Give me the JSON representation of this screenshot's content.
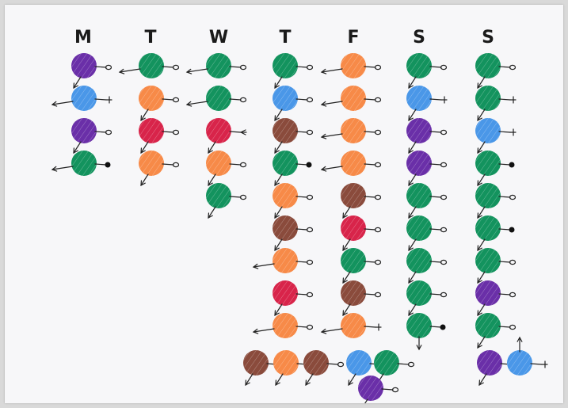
{
  "days": [
    "M",
    "T",
    "W",
    "T",
    "F",
    "S",
    "S"
  ],
  "colors": {
    "purple": "#6a2fa8",
    "blue": "#4a97e8",
    "green": "#13935e",
    "orange": "#f78a48",
    "red": "#d8244a",
    "brown": "#8a4b3c"
  },
  "columns": [
    [
      {
        "color": "purple",
        "dir": "sw",
        "tool": "o"
      },
      {
        "color": "blue",
        "dir": "w",
        "tool": "+"
      },
      {
        "color": "purple",
        "dir": "sw",
        "tool": "o"
      },
      {
        "color": "green",
        "dir": "w",
        "tool": "dot"
      }
    ],
    [
      {
        "color": "green",
        "dir": "w",
        "tool": "o"
      },
      {
        "color": "orange",
        "dir": "sw",
        "tool": "o"
      },
      {
        "color": "red",
        "dir": "sw",
        "tool": "o"
      },
      {
        "color": "orange",
        "dir": "sw",
        "tool": "o"
      }
    ],
    [
      {
        "color": "green",
        "dir": "w",
        "tool": "o"
      },
      {
        "color": "green",
        "dir": "w",
        "tool": "o"
      },
      {
        "color": "red",
        "dir": "sw",
        "tool": "fork"
      },
      {
        "color": "orange",
        "dir": "sw",
        "tool": "o"
      },
      {
        "color": "green",
        "dir": "sw",
        "tool": "o"
      }
    ],
    [
      {
        "color": "green",
        "dir": "sw",
        "tool": "o"
      },
      {
        "color": "blue",
        "dir": "sw",
        "tool": "o"
      },
      {
        "color": "brown",
        "dir": "sw",
        "tool": "o"
      },
      {
        "color": "green",
        "dir": "sw",
        "tool": "dot"
      },
      {
        "color": "orange",
        "dir": "sw",
        "tool": "o"
      },
      {
        "color": "brown",
        "dir": "sw",
        "tool": "o"
      },
      {
        "color": "orange",
        "dir": "w",
        "tool": "o"
      },
      {
        "color": "red",
        "dir": "sw",
        "tool": "o"
      },
      {
        "color": "orange",
        "dir": "w",
        "tool": "o"
      }
    ],
    [
      {
        "color": "orange",
        "dir": "w",
        "tool": "o"
      },
      {
        "color": "orange",
        "dir": "w",
        "tool": "o"
      },
      {
        "color": "orange",
        "dir": "w",
        "tool": "o"
      },
      {
        "color": "orange",
        "dir": "w",
        "tool": "o"
      },
      {
        "color": "brown",
        "dir": "sw",
        "tool": "o"
      },
      {
        "color": "red",
        "dir": "sw",
        "tool": "o"
      },
      {
        "color": "green",
        "dir": "sw",
        "tool": "o"
      },
      {
        "color": "brown",
        "dir": "sw",
        "tool": "o"
      },
      {
        "color": "orange",
        "dir": "w",
        "tool": "+"
      }
    ],
    [
      {
        "color": "green",
        "dir": "sw",
        "tool": "o"
      },
      {
        "color": "blue",
        "dir": "sw",
        "tool": "+"
      },
      {
        "color": "purple",
        "dir": "sw",
        "tool": "o"
      },
      {
        "color": "purple",
        "dir": "sw",
        "tool": "o"
      },
      {
        "color": "green",
        "dir": "sw",
        "tool": "o"
      },
      {
        "color": "green",
        "dir": "sw",
        "tool": "o"
      },
      {
        "color": "green",
        "dir": "sw",
        "tool": "o"
      },
      {
        "color": "green",
        "dir": "sw",
        "tool": "o"
      },
      {
        "color": "green",
        "dir": "s",
        "tool": "dot"
      }
    ],
    [
      {
        "color": "green",
        "dir": "sw",
        "tool": "o"
      },
      {
        "color": "green",
        "dir": "sw",
        "tool": "+"
      },
      {
        "color": "blue",
        "dir": "sw",
        "tool": "+"
      },
      {
        "color": "green",
        "dir": "sw",
        "tool": "dot"
      },
      {
        "color": "green",
        "dir": "sw",
        "tool": "o"
      },
      {
        "color": "green",
        "dir": "sw",
        "tool": "dot"
      },
      {
        "color": "green",
        "dir": "sw",
        "tool": "o"
      },
      {
        "color": "purple",
        "dir": "sw",
        "tool": "o"
      },
      {
        "color": "green",
        "dir": "sw",
        "tool": "o"
      }
    ]
  ],
  "bottom_cluster": [
    {
      "color": "brown",
      "dir": "sw",
      "tool": "o"
    },
    {
      "color": "orange",
      "dir": "sw",
      "tool": "o"
    },
    {
      "color": "brown",
      "dir": "sw",
      "tool": "o"
    },
    {
      "color": "blue",
      "dir": "sw",
      "tool": "+"
    },
    {
      "color": "green",
      "dir": "sw",
      "tool": "o"
    },
    {
      "color": "purple",
      "dir": "sw",
      "tool": "o"
    },
    {
      "color": "purple",
      "dir": "sw",
      "tool": "o"
    },
    {
      "color": "blue",
      "dir": "n",
      "tool": "+"
    }
  ]
}
